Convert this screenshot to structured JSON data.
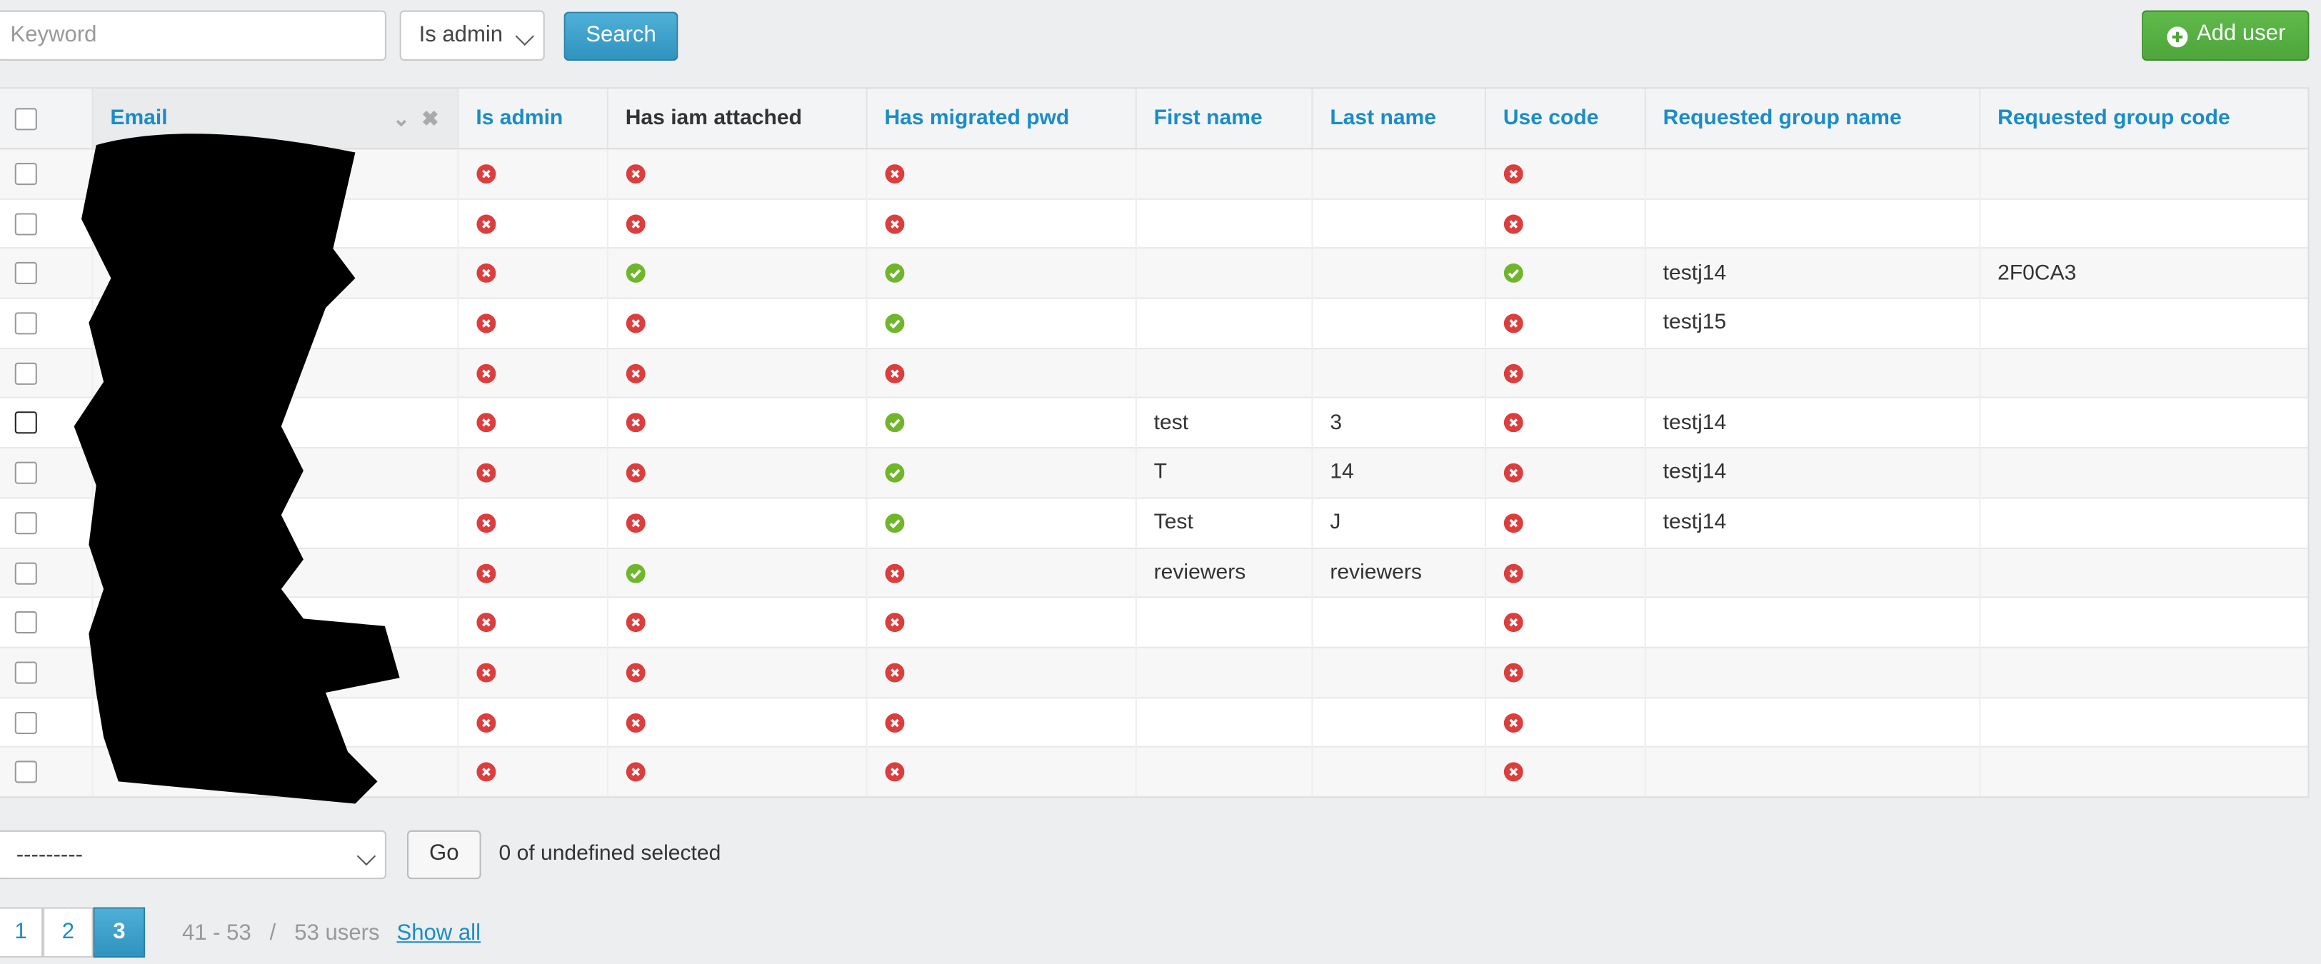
{
  "toolbar": {
    "keyword_placeholder": "Keyword",
    "filter": "Is admin",
    "search": "Search",
    "add_user": "Add user"
  },
  "table": {
    "headers": [
      "Email",
      "Is admin",
      "Has iam attached",
      "Has migrated pwd",
      "First name",
      "Last name",
      "Use code",
      "Requested group name",
      "Requested group code"
    ],
    "rows": [
      {
        "is_admin": false,
        "has_iam": false,
        "migrated_pwd": false,
        "first_name": null,
        "last_name": null,
        "use_code": false,
        "group_name": null,
        "group_code": null
      },
      {
        "is_admin": false,
        "has_iam": false,
        "migrated_pwd": false,
        "first_name": null,
        "last_name": null,
        "use_code": false,
        "group_name": null,
        "group_code": null
      },
      {
        "is_admin": false,
        "has_iam": true,
        "migrated_pwd": true,
        "first_name": null,
        "last_name": null,
        "use_code": true,
        "group_name": "testj14",
        "group_code": "2F0CA3"
      },
      {
        "is_admin": false,
        "has_iam": false,
        "migrated_pwd": true,
        "first_name": null,
        "last_name": null,
        "use_code": false,
        "group_name": "testj15",
        "group_code": null
      },
      {
        "is_admin": false,
        "has_iam": false,
        "migrated_pwd": false,
        "first_name": null,
        "last_name": null,
        "use_code": false,
        "group_name": null,
        "group_code": null
      },
      {
        "is_admin": false,
        "has_iam": false,
        "migrated_pwd": true,
        "first_name": "test",
        "last_name": "3",
        "use_code": false,
        "group_name": "testj14",
        "group_code": null
      },
      {
        "is_admin": false,
        "has_iam": false,
        "migrated_pwd": true,
        "first_name": "T",
        "last_name": "14",
        "use_code": false,
        "group_name": "testj14",
        "group_code": null
      },
      {
        "is_admin": false,
        "has_iam": false,
        "migrated_pwd": true,
        "first_name": "Test",
        "last_name": "J",
        "use_code": false,
        "group_name": "testj14",
        "group_code": null
      },
      {
        "is_admin": false,
        "has_iam": true,
        "migrated_pwd": false,
        "first_name": "reviewers",
        "last_name": "reviewers",
        "use_code": false,
        "group_name": null,
        "group_code": null
      },
      {
        "is_admin": false,
        "has_iam": false,
        "migrated_pwd": false,
        "first_name": null,
        "last_name": null,
        "use_code": false,
        "group_name": null,
        "group_code": null
      },
      {
        "is_admin": false,
        "has_iam": false,
        "migrated_pwd": false,
        "first_name": null,
        "last_name": null,
        "use_code": false,
        "group_name": null,
        "group_code": null
      },
      {
        "is_admin": false,
        "has_iam": false,
        "migrated_pwd": false,
        "first_name": null,
        "last_name": null,
        "use_code": false,
        "group_name": null,
        "group_code": null
      },
      {
        "is_admin": false,
        "has_iam": false,
        "migrated_pwd": false,
        "first_name": null,
        "last_name": null,
        "use_code": false,
        "group_name": null,
        "group_code": null
      }
    ]
  },
  "actions": {
    "select": "---------",
    "go": "Go",
    "selected_text": "0 of undefined selected"
  },
  "pagination": {
    "pages": [
      "1",
      "2",
      "3"
    ],
    "current": "3",
    "range": "41 - 53",
    "separator": "/",
    "total": "53 users",
    "show_all": "Show all"
  }
}
